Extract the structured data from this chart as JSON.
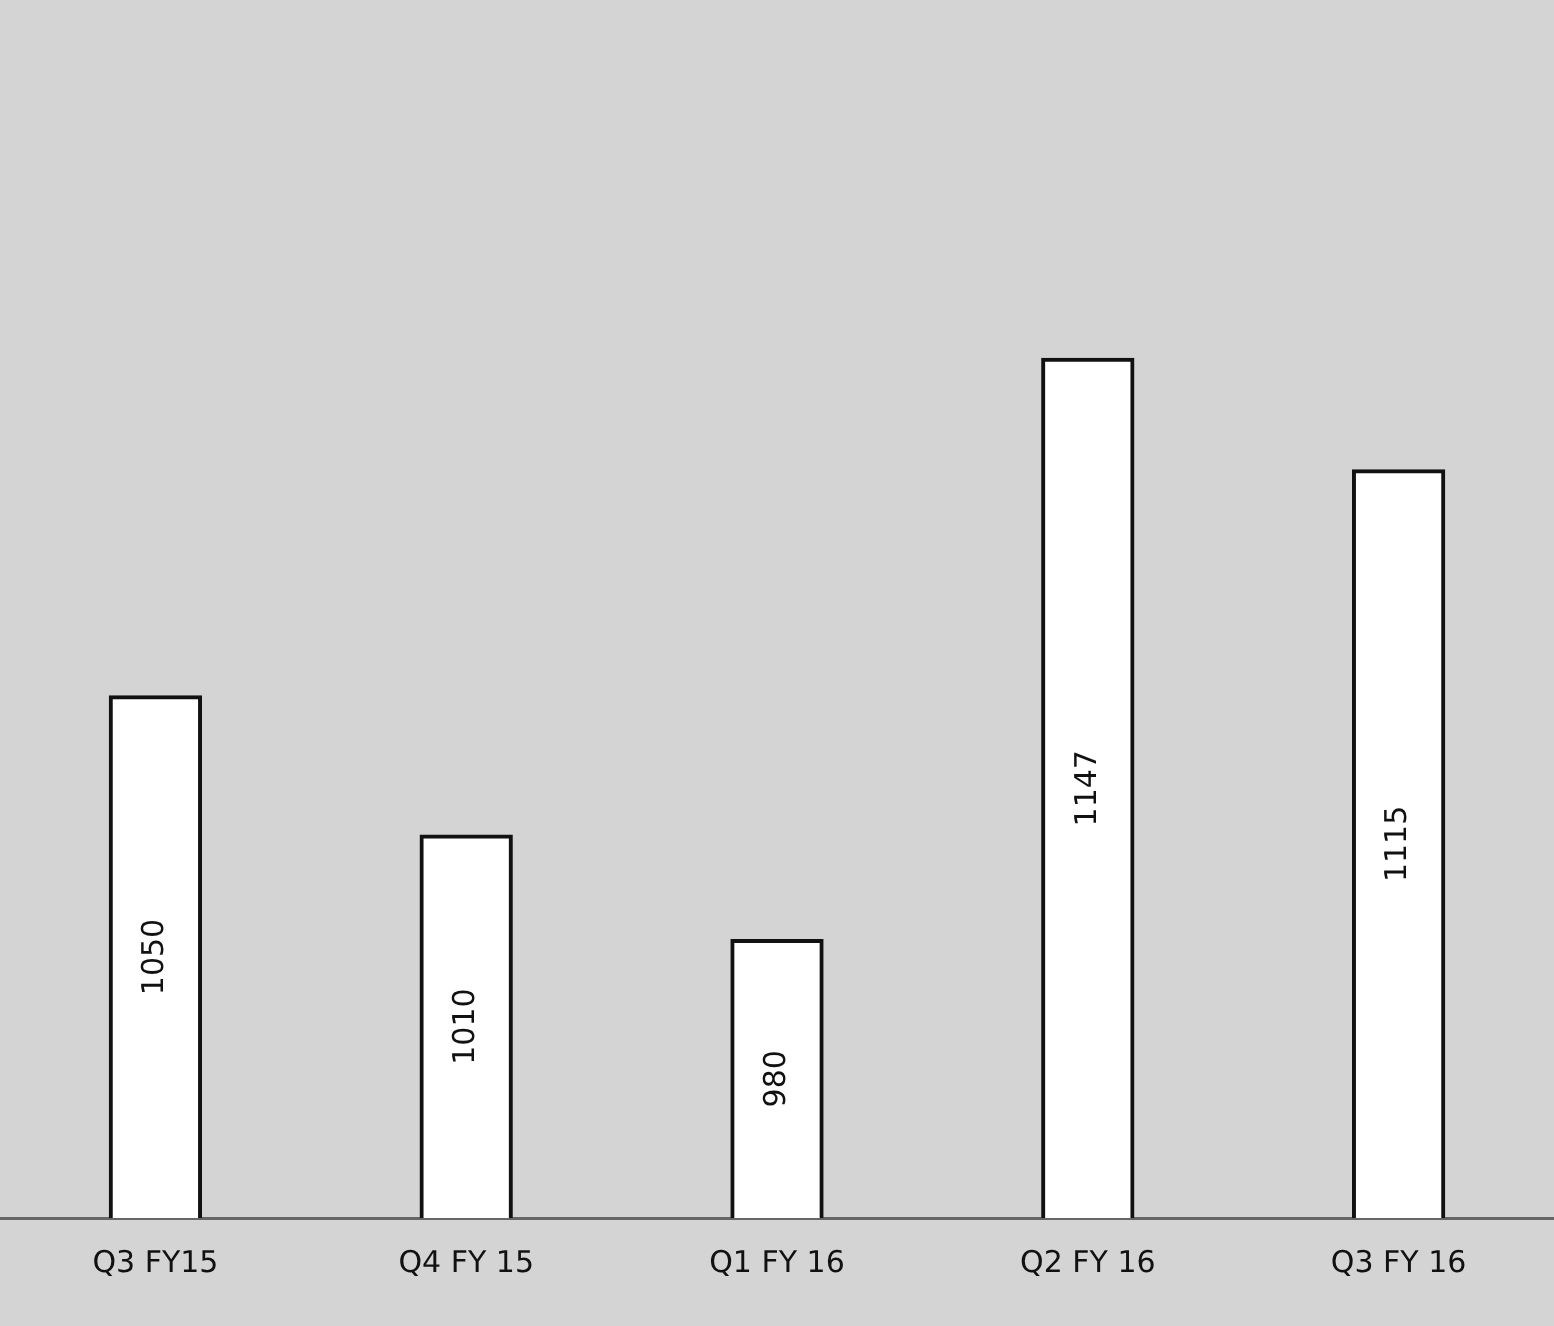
{
  "chart_data": {
    "type": "bar",
    "categories": [
      "Q3 FY15",
      "Q4 FY 15",
      "Q1 FY 16",
      "Q2 FY 16",
      "Q3 FY 16"
    ],
    "values": [
      1050,
      1010,
      980,
      1147,
      1115
    ],
    "color": "#ffffff",
    "data_labels": true,
    "grid": false,
    "legend": false,
    "tick_labels": "x"
  }
}
